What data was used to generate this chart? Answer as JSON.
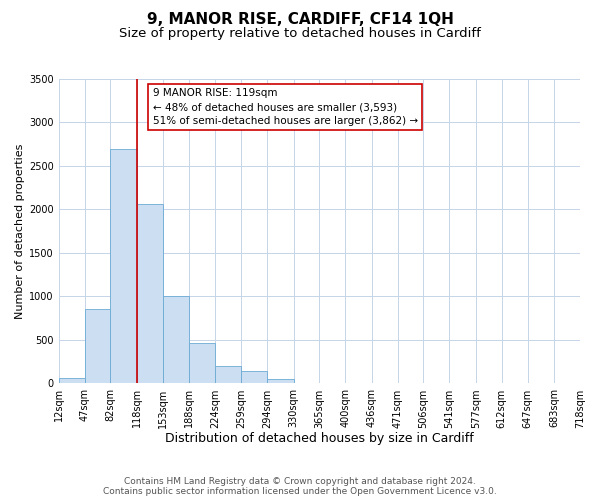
{
  "title": "9, MANOR RISE, CARDIFF, CF14 1QH",
  "subtitle": "Size of property relative to detached houses in Cardiff",
  "xlabel": "Distribution of detached houses by size in Cardiff",
  "ylabel": "Number of detached properties",
  "bar_edges": [
    12,
    47,
    82,
    118,
    153,
    188,
    224,
    259,
    294,
    330,
    365,
    400,
    436,
    471,
    506,
    541,
    577,
    612,
    647,
    683,
    718
  ],
  "bar_heights": [
    60,
    860,
    2700,
    2060,
    1010,
    460,
    200,
    140,
    55,
    0,
    0,
    0,
    0,
    0,
    0,
    0,
    0,
    0,
    0,
    0
  ],
  "bar_color": "#ccdff2",
  "bar_edge_color": "#6aaad4",
  "vline_x": 118,
  "vline_color": "#cc0000",
  "ylim": [
    0,
    3500
  ],
  "yticks": [
    0,
    500,
    1000,
    1500,
    2000,
    2500,
    3000,
    3500
  ],
  "annotation_title": "9 MANOR RISE: 119sqm",
  "annotation_line1": "← 48% of detached houses are smaller (3,593)",
  "annotation_line2": "51% of semi-detached houses are larger (3,862) →",
  "annotation_box_color": "#ffffff",
  "annotation_border_color": "#cc0000",
  "footer_line1": "Contains HM Land Registry data © Crown copyright and database right 2024.",
  "footer_line2": "Contains public sector information licensed under the Open Government Licence v3.0.",
  "background_color": "#ffffff",
  "grid_color": "#c5d5e8",
  "title_fontsize": 11,
  "subtitle_fontsize": 9.5,
  "xlabel_fontsize": 9,
  "ylabel_fontsize": 8,
  "tick_fontsize": 7,
  "footer_fontsize": 6.5,
  "ann_fontsize": 7.5
}
